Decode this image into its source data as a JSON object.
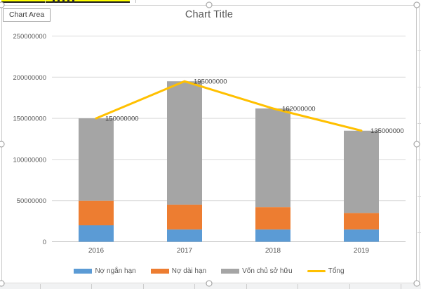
{
  "excel": {
    "tooltip": "Chart Area"
  },
  "chart_data": {
    "type": "bar",
    "subtype": "stacked-column-with-line",
    "title": "Chart Title",
    "categories": [
      "2016",
      "2017",
      "2018",
      "2019"
    ],
    "series": [
      {
        "name": "Nợ ngắn hạn",
        "type": "bar",
        "color": "#5b9bd5",
        "values": [
          20000000,
          15000000,
          15000000,
          15000000
        ]
      },
      {
        "name": "Nợ dài hạn",
        "type": "bar",
        "color": "#ed7d31",
        "values": [
          30000000,
          30000000,
          27000000,
          20000000
        ]
      },
      {
        "name": "Vốn chủ sở hữu",
        "type": "bar",
        "color": "#a5a5a5",
        "values": [
          100000000,
          150000000,
          120000000,
          100000000
        ]
      },
      {
        "name": "Tổng",
        "type": "line",
        "color": "#ffc000",
        "values": [
          150000000,
          195000000,
          162000000,
          135000000
        ],
        "data_labels": [
          "150000000",
          "195000000",
          "162000000",
          "135000000"
        ]
      }
    ],
    "stacked": true,
    "grid": true,
    "legend_position": "bottom",
    "ylim": [
      0,
      250000000
    ],
    "y_ticks": [
      0,
      50000000,
      100000000,
      150000000,
      200000000,
      250000000
    ],
    "colors": {
      "title_text": "#595959",
      "axis_text": "#595959",
      "data_label_text": "#404040",
      "gridline": "#d9d9d9",
      "axis_line": "#bfbfbf"
    }
  }
}
